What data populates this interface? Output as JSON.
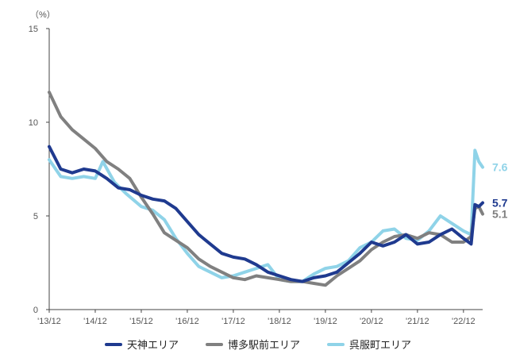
{
  "chart_data": {
    "type": "line",
    "unit_label": "（%）",
    "ylim": [
      0,
      15
    ],
    "y_ticks": [
      0,
      5,
      10,
      15
    ],
    "x_ticks": [
      "'13/12",
      "'14/12",
      "'15/12",
      "'16/12",
      "'17/12",
      "'18/12",
      "'19/12",
      "'20/12",
      "'21/12",
      "'22/12"
    ],
    "x_domain": [
      "2013-12",
      "2023-05"
    ],
    "grid": false,
    "legend_position": "bottom",
    "series": [
      {
        "name": "天神エリア",
        "color": "#1f3a8f",
        "end_label": "5.7",
        "points": [
          [
            "2013-12",
            8.7
          ],
          [
            "2014-03",
            7.5
          ],
          [
            "2014-06",
            7.3
          ],
          [
            "2014-09",
            7.5
          ],
          [
            "2014-12",
            7.4
          ],
          [
            "2015-03",
            7.0
          ],
          [
            "2015-06",
            6.5
          ],
          [
            "2015-09",
            6.4
          ],
          [
            "2015-12",
            6.1
          ],
          [
            "2016-03",
            5.9
          ],
          [
            "2016-06",
            5.8
          ],
          [
            "2016-09",
            5.4
          ],
          [
            "2016-12",
            4.7
          ],
          [
            "2017-03",
            4.0
          ],
          [
            "2017-06",
            3.5
          ],
          [
            "2017-09",
            3.0
          ],
          [
            "2017-12",
            2.8
          ],
          [
            "2018-03",
            2.7
          ],
          [
            "2018-06",
            2.4
          ],
          [
            "2018-09",
            2.0
          ],
          [
            "2018-12",
            1.8
          ],
          [
            "2019-03",
            1.6
          ],
          [
            "2019-06",
            1.5
          ],
          [
            "2019-09",
            1.7
          ],
          [
            "2019-12",
            1.8
          ],
          [
            "2020-03",
            2.0
          ],
          [
            "2020-06",
            2.5
          ],
          [
            "2020-09",
            3.0
          ],
          [
            "2020-12",
            3.6
          ],
          [
            "2021-03",
            3.4
          ],
          [
            "2021-06",
            3.6
          ],
          [
            "2021-09",
            4.0
          ],
          [
            "2021-12",
            3.5
          ],
          [
            "2022-03",
            3.6
          ],
          [
            "2022-06",
            4.0
          ],
          [
            "2022-09",
            4.3
          ],
          [
            "2022-12",
            3.8
          ],
          [
            "2023-02",
            3.5
          ],
          [
            "2023-03",
            5.6
          ],
          [
            "2023-04",
            5.5
          ],
          [
            "2023-05",
            5.7
          ]
        ]
      },
      {
        "name": "博多駅前エリア",
        "color": "#808080",
        "end_label": "5.1",
        "points": [
          [
            "2013-12",
            11.6
          ],
          [
            "2014-03",
            10.3
          ],
          [
            "2014-06",
            9.6
          ],
          [
            "2014-09",
            9.1
          ],
          [
            "2014-12",
            8.6
          ],
          [
            "2015-03",
            7.9
          ],
          [
            "2015-06",
            7.5
          ],
          [
            "2015-09",
            7.0
          ],
          [
            "2015-12",
            6.0
          ],
          [
            "2016-03",
            5.1
          ],
          [
            "2016-06",
            4.1
          ],
          [
            "2016-09",
            3.7
          ],
          [
            "2016-12",
            3.3
          ],
          [
            "2017-03",
            2.7
          ],
          [
            "2017-06",
            2.3
          ],
          [
            "2017-09",
            2.0
          ],
          [
            "2017-12",
            1.7
          ],
          [
            "2018-03",
            1.6
          ],
          [
            "2018-06",
            1.8
          ],
          [
            "2018-09",
            1.7
          ],
          [
            "2018-12",
            1.6
          ],
          [
            "2019-03",
            1.5
          ],
          [
            "2019-06",
            1.5
          ],
          [
            "2019-09",
            1.4
          ],
          [
            "2019-12",
            1.3
          ],
          [
            "2020-03",
            1.8
          ],
          [
            "2020-06",
            2.2
          ],
          [
            "2020-09",
            2.6
          ],
          [
            "2020-12",
            3.2
          ],
          [
            "2021-03",
            3.6
          ],
          [
            "2021-06",
            3.9
          ],
          [
            "2021-09",
            4.0
          ],
          [
            "2021-12",
            3.8
          ],
          [
            "2022-03",
            4.1
          ],
          [
            "2022-06",
            4.0
          ],
          [
            "2022-09",
            3.6
          ],
          [
            "2022-12",
            3.6
          ],
          [
            "2023-02",
            3.9
          ],
          [
            "2023-03",
            5.4
          ],
          [
            "2023-04",
            5.5
          ],
          [
            "2023-05",
            5.1
          ]
        ]
      },
      {
        "name": "呉服町エリア",
        "color": "#8fd3e8",
        "end_label": "7.6",
        "points": [
          [
            "2013-12",
            8.0
          ],
          [
            "2014-03",
            7.1
          ],
          [
            "2014-06",
            7.0
          ],
          [
            "2014-09",
            7.1
          ],
          [
            "2014-12",
            7.0
          ],
          [
            "2015-02",
            7.9
          ],
          [
            "2015-05",
            6.8
          ],
          [
            "2015-08",
            6.2
          ],
          [
            "2015-12",
            5.5
          ],
          [
            "2016-03",
            5.3
          ],
          [
            "2016-06",
            4.8
          ],
          [
            "2016-09",
            3.8
          ],
          [
            "2016-12",
            3.0
          ],
          [
            "2017-03",
            2.3
          ],
          [
            "2017-06",
            2.0
          ],
          [
            "2017-09",
            1.7
          ],
          [
            "2017-12",
            1.8
          ],
          [
            "2018-03",
            2.0
          ],
          [
            "2018-06",
            2.2
          ],
          [
            "2018-09",
            2.4
          ],
          [
            "2018-12",
            1.6
          ],
          [
            "2019-03",
            1.5
          ],
          [
            "2019-06",
            1.5
          ],
          [
            "2019-09",
            1.9
          ],
          [
            "2019-12",
            2.2
          ],
          [
            "2020-03",
            2.3
          ],
          [
            "2020-06",
            2.6
          ],
          [
            "2020-09",
            3.3
          ],
          [
            "2020-12",
            3.6
          ],
          [
            "2021-03",
            4.2
          ],
          [
            "2021-06",
            4.3
          ],
          [
            "2021-09",
            3.8
          ],
          [
            "2021-12",
            3.7
          ],
          [
            "2022-03",
            4.2
          ],
          [
            "2022-06",
            5.0
          ],
          [
            "2022-09",
            4.6
          ],
          [
            "2022-12",
            4.2
          ],
          [
            "2023-02",
            4.0
          ],
          [
            "2023-03",
            8.5
          ],
          [
            "2023-04",
            7.9
          ],
          [
            "2023-05",
            7.6
          ]
        ]
      }
    ]
  }
}
